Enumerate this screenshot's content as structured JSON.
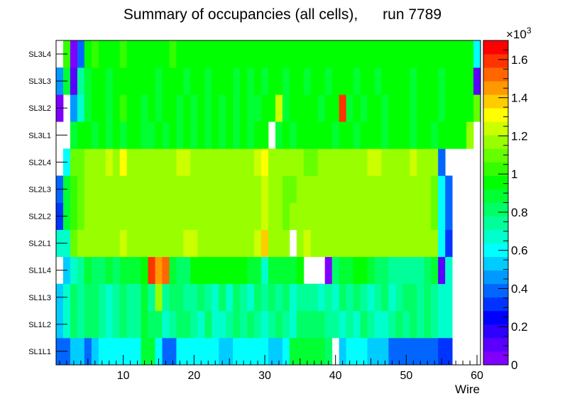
{
  "chart_data": {
    "type": "heatmap",
    "title": "Summary of occupancies (all cells),      run 7789",
    "xlabel": "Wire",
    "ylabel": "",
    "xlim": [
      0.5,
      60.5
    ],
    "x_ticks": [
      10,
      20,
      30,
      40,
      50,
      60
    ],
    "y_categories": [
      "SL1L1",
      "SL1L2",
      "SL1L3",
      "SL1L4",
      "SL2L1",
      "SL2L2",
      "SL2L3",
      "SL2L4",
      "SL3L1",
      "SL3L2",
      "SL3L3",
      "SL3L4"
    ],
    "z_range": [
      0,
      1700
    ],
    "colorbar_multiplier": "×10³",
    "colorbar_exponent": "3",
    "colorbar_ticks": [
      "0",
      "0.2",
      "0.4",
      "0.6",
      "0.8",
      "1",
      "1.2",
      "1.4",
      "1.6"
    ],
    "colorbar_tick_values": [
      0,
      200,
      400,
      600,
      800,
      1000,
      1200,
      1400,
      1600
    ],
    "values": [
      [
        380,
        380,
        500,
        500,
        380,
        500,
        580,
        580,
        580,
        580,
        580,
        580,
        900,
        900,
        580,
        380,
        380,
        580,
        580,
        580,
        580,
        580,
        580,
        500,
        500,
        580,
        580,
        580,
        580,
        580,
        500,
        500,
        580,
        900,
        850,
        850,
        850,
        850,
        800,
        null,
        500,
        580,
        580,
        580,
        500,
        500,
        500,
        380,
        380,
        380,
        380,
        380,
        380,
        380,
        300,
        300,
        null,
        null,
        null,
        null
      ],
      [
        500,
        700,
        800,
        750,
        800,
        800,
        750,
        700,
        750,
        800,
        750,
        750,
        850,
        800,
        800,
        700,
        750,
        800,
        800,
        750,
        700,
        800,
        700,
        700,
        750,
        800,
        750,
        800,
        750,
        700,
        750,
        800,
        750,
        700,
        800,
        780,
        800,
        800,
        750,
        720,
        700,
        750,
        700,
        800,
        750,
        700,
        700,
        750,
        800,
        750,
        800,
        750,
        780,
        750,
        700,
        650,
        null,
        null,
        null,
        null
      ],
      [
        500,
        700,
        800,
        750,
        800,
        800,
        750,
        700,
        750,
        800,
        750,
        750,
        850,
        750,
        1150,
        750,
        800,
        800,
        750,
        750,
        800,
        750,
        700,
        800,
        700,
        800,
        750,
        700,
        800,
        750,
        800,
        750,
        800,
        700,
        750,
        750,
        720,
        700,
        750,
        700,
        800,
        750,
        800,
        750,
        700,
        750,
        800,
        700,
        750,
        800,
        800,
        750,
        780,
        720,
        700,
        650,
        null,
        null,
        null,
        null
      ],
      [
        null,
        500,
        680,
        720,
        880,
        800,
        800,
        880,
        800,
        880,
        900,
        850,
        950,
        1600,
        1450,
        1550,
        850,
        800,
        800,
        950,
        950,
        950,
        950,
        950,
        950,
        950,
        950,
        900,
        900,
        700,
        850,
        850,
        880,
        850,
        950,
        null,
        null,
        null,
        50,
        800,
        900,
        880,
        950,
        950,
        880,
        800,
        800,
        750,
        750,
        750,
        750,
        750,
        800,
        880,
        100,
        650,
        null,
        null,
        null,
        null
      ],
      [
        650,
        700,
        1100,
        1150,
        1150,
        1150,
        1150,
        1150,
        1150,
        1250,
        1150,
        1150,
        1150,
        1150,
        1150,
        1150,
        1150,
        1150,
        1250,
        1250,
        1150,
        1150,
        1150,
        1150,
        1150,
        1150,
        1150,
        1150,
        1250,
        1350,
        1150,
        1150,
        1150,
        null,
        1150,
        1250,
        1150,
        1150,
        1150,
        1150,
        1150,
        1150,
        1150,
        1150,
        1150,
        1150,
        1150,
        1150,
        1150,
        1150,
        1150,
        1150,
        1150,
        1150,
        600,
        300,
        null,
        null,
        null,
        null
      ],
      [
        300,
        900,
        1050,
        1100,
        1150,
        1150,
        1150,
        1150,
        1150,
        1150,
        1150,
        1150,
        1150,
        1150,
        1150,
        1150,
        1150,
        1150,
        1150,
        1150,
        1150,
        1150,
        1150,
        1150,
        1150,
        1200,
        1150,
        1150,
        1150,
        1250,
        1150,
        1150,
        1100,
        1150,
        1150,
        1150,
        1150,
        1150,
        1150,
        1150,
        1150,
        1150,
        1150,
        1150,
        1150,
        1150,
        1150,
        1150,
        1150,
        1150,
        1150,
        1150,
        1150,
        1100,
        600,
        400,
        null,
        null,
        null,
        null
      ],
      [
        380,
        900,
        1050,
        1100,
        1150,
        1150,
        1150,
        1150,
        1150,
        1150,
        1150,
        1150,
        1150,
        1150,
        1150,
        1150,
        1150,
        1150,
        1150,
        1150,
        1150,
        1150,
        1150,
        1150,
        1150,
        1150,
        1150,
        1150,
        1200,
        1250,
        1150,
        1150,
        1100,
        1100,
        1150,
        1150,
        1150,
        1150,
        1150,
        1150,
        1150,
        1150,
        1150,
        1150,
        1200,
        1150,
        1150,
        1150,
        1150,
        1150,
        1150,
        1150,
        1150,
        1100,
        600,
        400,
        null,
        null,
        null,
        null
      ],
      [
        null,
        600,
        1100,
        1100,
        1150,
        1150,
        1150,
        1250,
        1150,
        1300,
        1150,
        1150,
        1150,
        1150,
        1150,
        1150,
        1150,
        1250,
        1250,
        1150,
        1150,
        1150,
        1150,
        1150,
        1150,
        1150,
        1150,
        1150,
        1250,
        1300,
        1150,
        1150,
        1150,
        1150,
        1150,
        1100,
        1100,
        1150,
        1150,
        1150,
        1150,
        1150,
        1150,
        1150,
        1250,
        1250,
        1150,
        1150,
        1150,
        1150,
        1250,
        1150,
        1150,
        1150,
        400,
        null,
        null,
        null,
        null,
        null
      ],
      [
        null,
        null,
        850,
        950,
        950,
        900,
        950,
        900,
        950,
        900,
        950,
        950,
        900,
        900,
        950,
        900,
        950,
        900,
        950,
        900,
        950,
        900,
        950,
        900,
        950,
        900,
        950,
        900,
        950,
        950,
        null,
        900,
        950,
        900,
        950,
        950,
        950,
        950,
        950,
        900,
        950,
        950,
        900,
        950,
        950,
        950,
        900,
        950,
        950,
        950,
        900,
        950,
        950,
        900,
        950,
        950,
        950,
        950,
        1200,
        null
      ],
      [
        50,
        null,
        450,
        700,
        900,
        950,
        950,
        900,
        950,
        1000,
        950,
        950,
        900,
        950,
        900,
        950,
        950,
        900,
        950,
        900,
        950,
        900,
        950,
        900,
        950,
        900,
        950,
        900,
        900,
        950,
        950,
        1250,
        900,
        950,
        950,
        950,
        950,
        900,
        950,
        950,
        1600,
        850,
        950,
        900,
        950,
        950,
        900,
        950,
        950,
        950,
        900,
        950,
        950,
        950,
        900,
        950,
        950,
        950,
        950,
        1100
      ],
      [
        450,
        900,
        100,
        750,
        900,
        950,
        950,
        900,
        950,
        950,
        950,
        950,
        950,
        950,
        900,
        950,
        950,
        950,
        900,
        950,
        950,
        900,
        950,
        950,
        950,
        900,
        950,
        900,
        950,
        900,
        950,
        950,
        900,
        950,
        950,
        900,
        950,
        950,
        900,
        950,
        950,
        950,
        900,
        950,
        950,
        900,
        950,
        950,
        950,
        950,
        900,
        950,
        950,
        950,
        900,
        950,
        950,
        950,
        950,
        100
      ],
      [
        null,
        1000,
        50,
        400,
        950,
        1000,
        950,
        950,
        950,
        1000,
        950,
        950,
        950,
        950,
        950,
        950,
        1000,
        950,
        950,
        950,
        950,
        950,
        950,
        950,
        950,
        950,
        950,
        950,
        950,
        950,
        950,
        950,
        950,
        950,
        950,
        950,
        950,
        950,
        950,
        950,
        950,
        950,
        950,
        950,
        950,
        950,
        950,
        950,
        950,
        950,
        950,
        950,
        950,
        950,
        950,
        950,
        950,
        950,
        950,
        600
      ]
    ]
  }
}
